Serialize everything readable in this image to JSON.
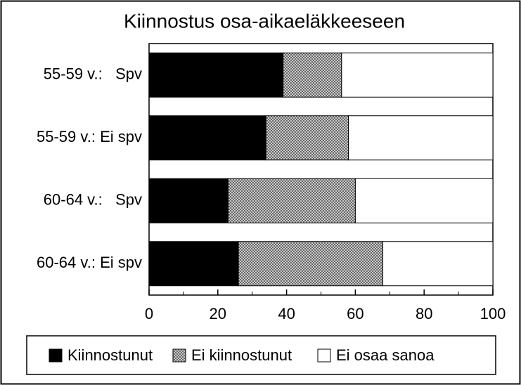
{
  "chart_data": {
    "type": "stacked_barh",
    "title": "Kiinnostus osa-aikaeläkkeeseen",
    "categories": [
      "55-59 v.:   Spv",
      "55-59 v.: Ei spv",
      "60-64 v.:   Spv",
      "60-64 v.: Ei spv"
    ],
    "series": [
      {
        "name": "Kiinnostunut",
        "color": "#000000",
        "values": [
          39,
          34,
          23,
          26
        ]
      },
      {
        "name": "Ei kiinnostunut",
        "color": "#9a9a9a",
        "pattern": "crosshatch",
        "values": [
          17,
          24,
          37,
          42
        ]
      },
      {
        "name": "Ei osaa sanoa",
        "color": "#ffffff",
        "values": [
          44,
          42,
          40,
          32
        ]
      }
    ],
    "xlim": [
      0,
      100
    ],
    "xticks": [
      0,
      20,
      40,
      60,
      80,
      100
    ],
    "xminorticks": [
      10,
      30,
      50,
      70,
      90
    ],
    "legend": "bottom"
  }
}
